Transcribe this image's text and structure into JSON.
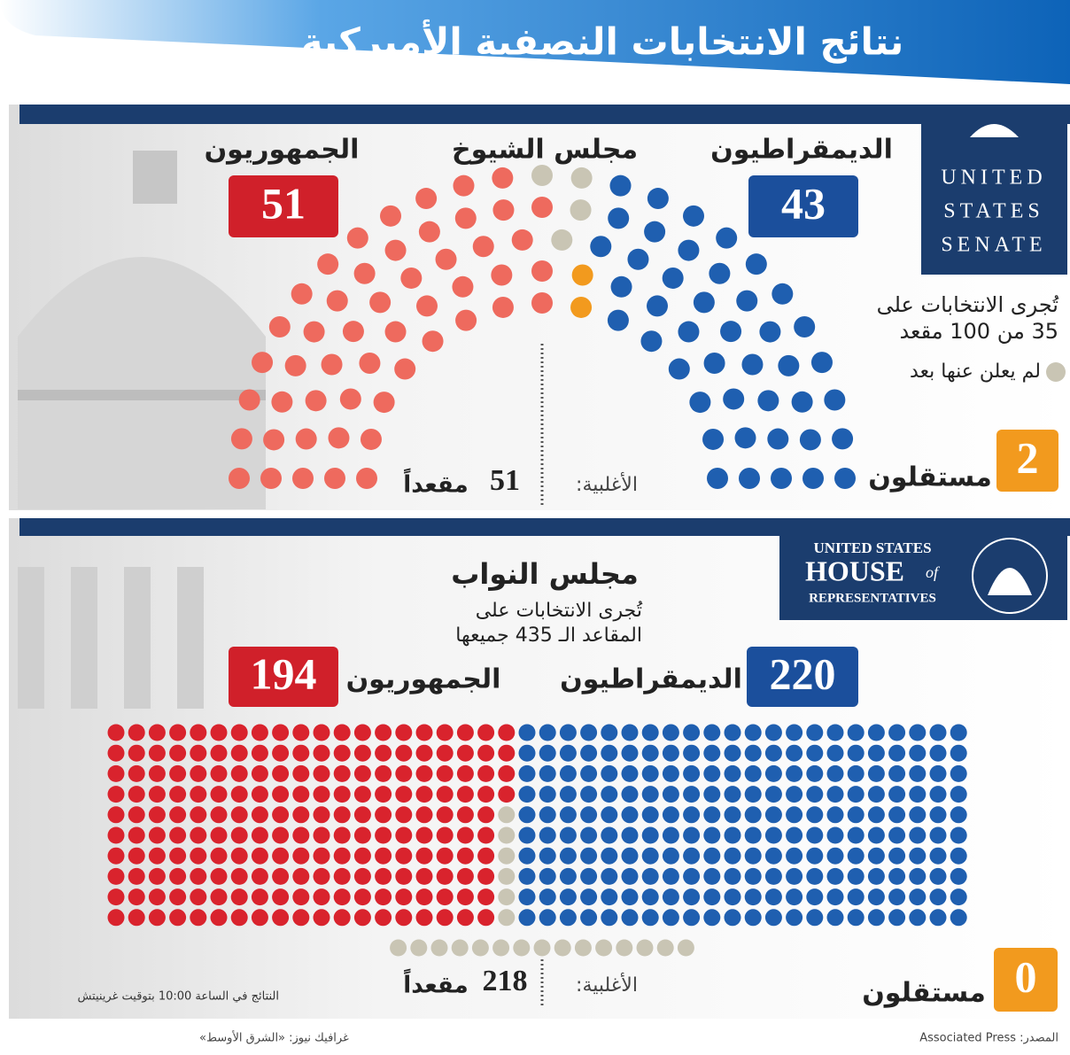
{
  "title": "نتائج الانتخابات النصفية الأميركية",
  "senate_logo": [
    "UNITED",
    "STATES",
    "SENATE"
  ],
  "house_logo": {
    "line1": "UNITED STATES",
    "line2": "HOUSE",
    "line2_suffix": "of",
    "line3": "REPRESENTATIVES"
  },
  "chart_data": [
    {
      "type": "hemicycle",
      "title": "مجلس الشيوخ",
      "categories": [
        "الجمهوريون",
        "لم يعلن عنها بعد",
        "مستقلون",
        "الديمقراطيون"
      ],
      "values": [
        51,
        4,
        2,
        43
      ],
      "colors": [
        "#ee6a5e",
        "#c9c5b4",
        "#f29a1e",
        "#1f5fb0"
      ],
      "note": [
        "تُجرى الانتخابات على",
        "35 من 100 مقعد"
      ],
      "majority_label": "الأغلبية:",
      "majority": 51,
      "majority_unit": "مقعداً"
    },
    {
      "type": "seat-grid",
      "title": "مجلس النواب",
      "categories": [
        "الجمهوريون",
        null,
        "مستقلون",
        "الديمقراطيون"
      ],
      "values": [
        194,
        21,
        0,
        220
      ],
      "colors": [
        "#d9232d",
        "#c9c5b4",
        "#f29a1e",
        "#1f5fb0"
      ],
      "note": [
        "تُجرى الانتخابات على",
        "المقاعد الـ 435 جميعها"
      ],
      "majority_label": "الأغلبية:",
      "majority": 218,
      "majority_unit": "مقعداً"
    }
  ],
  "timestamp_note": "النتائج في الساعة 10:00 بتوقيت غرينيتش",
  "credit": "غرافيك نيوز: «الشرق الأوسط»",
  "source": "المصدر: Associated Press"
}
